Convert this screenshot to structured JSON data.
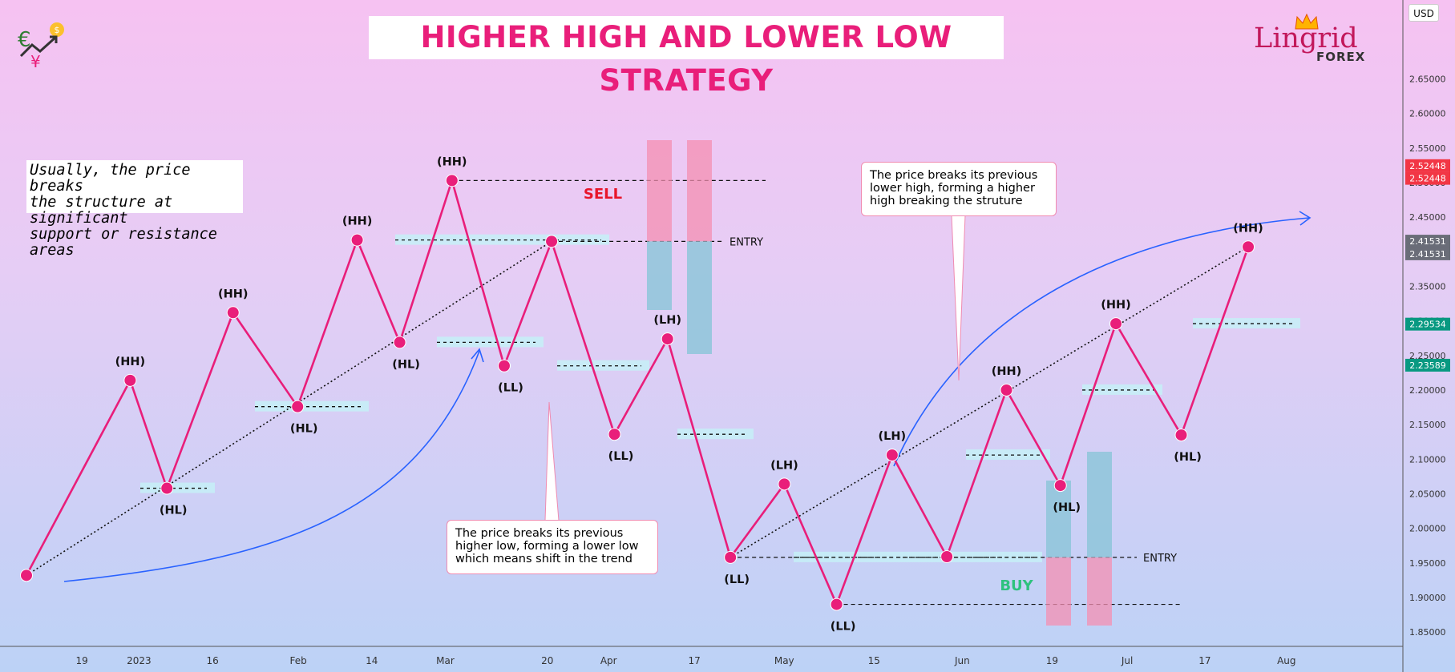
{
  "title": "HIGHER HIGH AND LOWER LOW STRATEGY",
  "note_left": "Usually, the price breaks\nthe structure at significant\nsupport or resistance areas",
  "callout_lower": "The price breaks its previous\nhigher low, forming a lower low\nwhich means shift in the trend",
  "callout_upper": "The price breaks its previous\nlower high, forming a higher\nhigh breaking the struture",
  "logo": {
    "brand": "Lingrid",
    "sub": "FOREX"
  },
  "currency": "USD",
  "sell_label": "SELL",
  "buy_label": "BUY",
  "entry_label": "ENTRY",
  "colors": {
    "line": "#e91e7a",
    "point": "#e91e7a",
    "sell": "#e8152a",
    "buy": "#2ec27e",
    "sl_zone": "#f48fb1",
    "tp_zone": "#8ec5d9",
    "zone": "#c6f0f7",
    "arrow": "#2962ff"
  },
  "chart_data": {
    "type": "line",
    "title": "HIGHER HIGH AND LOWER LOW STRATEGY",
    "x_ticks": [
      {
        "label": "19",
        "t": 0.06
      },
      {
        "label": "2023",
        "t": 0.13
      },
      {
        "label": "16",
        "t": 0.22
      },
      {
        "label": "Feb",
        "t": 0.325
      },
      {
        "label": "14",
        "t": 0.415
      },
      {
        "label": "Mar",
        "t": 0.505
      },
      {
        "label": "20",
        "t": 0.63
      },
      {
        "label": "Apr",
        "t": 0.705
      },
      {
        "label": "17",
        "t": 0.81
      },
      {
        "label": "May",
        "t": 0.92
      },
      {
        "label": "15",
        "t": 1.03
      },
      {
        "label": "Jun",
        "t": 1.138
      },
      {
        "label": "19",
        "t": 1.248
      },
      {
        "label": "Jul",
        "t": 1.34
      },
      {
        "label": "17",
        "t": 1.435
      },
      {
        "label": "Aug",
        "t": 1.535
      }
    ],
    "x_range": [
      0,
      1.6
    ],
    "y_ticks": [
      1.85,
      1.9,
      1.95,
      2.0,
      2.05,
      2.1,
      2.15,
      2.2,
      2.25,
      2.3,
      2.35,
      2.4,
      2.45,
      2.5,
      2.55,
      2.6,
      2.65
    ],
    "ylim": [
      1.82,
      2.705
    ],
    "price_tags": [
      {
        "value": "2.52448",
        "price": 2.5245,
        "color": "#f23645"
      },
      {
        "value": "2.52448",
        "price": 2.5062,
        "color": "#f23645"
      },
      {
        "value": "2.41531",
        "price": 2.4153,
        "color": "#6a6d78"
      },
      {
        "value": "2.41531",
        "price": 2.397,
        "color": "#6a6d78"
      },
      {
        "value": "2.29534",
        "price": 2.2953,
        "color": "#089981"
      },
      {
        "value": "2.23589",
        "price": 2.2359,
        "color": "#089981"
      }
    ],
    "series": [
      {
        "name": "price structure",
        "points": [
          {
            "t": 0.0,
            "price": 1.932,
            "label": ""
          },
          {
            "t": 0.127,
            "price": 2.214,
            "label": "(HH)"
          },
          {
            "t": 0.172,
            "price": 2.058,
            "label": "(HL)"
          },
          {
            "t": 0.253,
            "price": 2.312,
            "label": "(HH)"
          },
          {
            "t": 0.332,
            "price": 2.176,
            "label": "(HL)"
          },
          {
            "t": 0.405,
            "price": 2.417,
            "label": "(HH)"
          },
          {
            "t": 0.457,
            "price": 2.269,
            "label": "(HL)"
          },
          {
            "t": 0.521,
            "price": 2.503,
            "label": "(HH)"
          },
          {
            "t": 0.585,
            "price": 2.235,
            "label": "(LL)"
          },
          {
            "t": 0.643,
            "price": 2.415,
            "label": ""
          },
          {
            "t": 0.72,
            "price": 2.136,
            "label": "(LL)"
          },
          {
            "t": 0.785,
            "price": 2.274,
            "label": "(LH)"
          },
          {
            "t": 0.862,
            "price": 1.958,
            "label": "(LL)"
          },
          {
            "t": 0.928,
            "price": 2.064,
            "label": "(LH)"
          },
          {
            "t": 0.992,
            "price": 1.89,
            "label": "(LL)"
          },
          {
            "t": 1.06,
            "price": 2.106,
            "label": "(LH)"
          },
          {
            "t": 1.127,
            "price": 1.959,
            "label": ""
          },
          {
            "t": 1.2,
            "price": 2.2,
            "label": "(HH)"
          },
          {
            "t": 1.266,
            "price": 2.062,
            "label": "(HL)"
          },
          {
            "t": 1.334,
            "price": 2.296,
            "label": "(HH)"
          },
          {
            "t": 1.414,
            "price": 2.135,
            "label": "(HL)"
          },
          {
            "t": 1.496,
            "price": 2.407,
            "label": "(HH)"
          }
        ]
      }
    ],
    "annotations": [
      "SELL",
      "BUY",
      "ENTRY",
      "ENTRY"
    ]
  }
}
